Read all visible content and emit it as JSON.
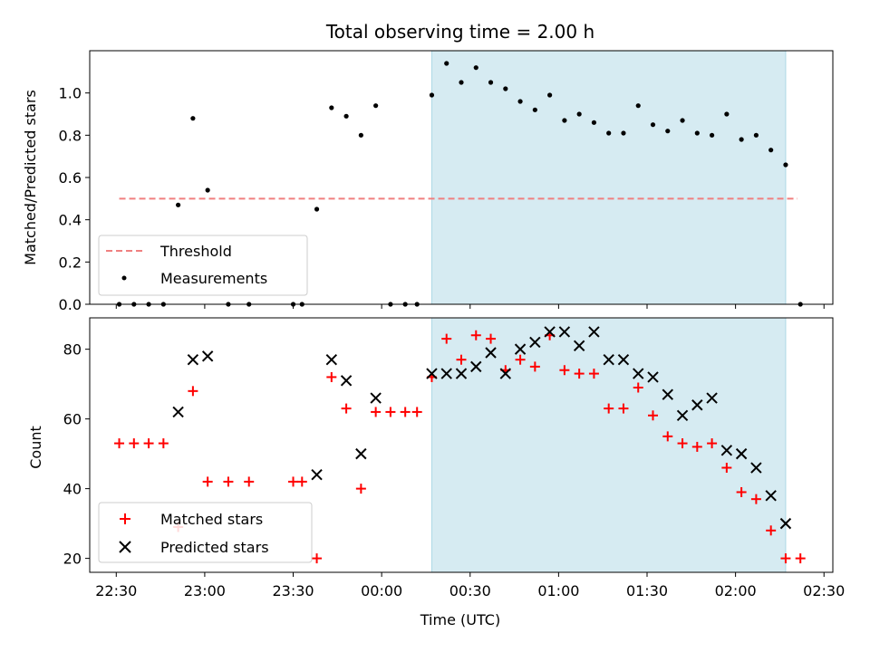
{
  "chart_data": [
    {
      "type": "scatter",
      "title": "Total observing time = 2.00 h",
      "xlabel": "",
      "ylabel": "Matched/Predicted stars",
      "ylim": [
        0,
        1.2
      ],
      "yticks": [
        "0.0",
        "0.2",
        "0.4",
        "0.6",
        "0.8",
        "1.0"
      ],
      "xlim": [
        "22:21",
        "02:33"
      ],
      "highlight_span": [
        "00:17",
        "02:17"
      ],
      "threshold": {
        "name": "Threshold",
        "y": 0.5,
        "x_start": "22:31",
        "x_end": "02:21",
        "color": "#f08080"
      },
      "series": [
        {
          "name": "Measurements",
          "color": "#000000",
          "x": [
            "22:31",
            "22:36",
            "22:41",
            "22:46",
            "22:51",
            "22:56",
            "23:01",
            "23:08",
            "23:15",
            "23:30",
            "23:33",
            "23:38",
            "23:43",
            "23:48",
            "23:53",
            "23:58",
            "00:03",
            "00:08",
            "00:12",
            "00:17",
            "00:22",
            "00:27",
            "00:32",
            "00:37",
            "00:42",
            "00:47",
            "00:52",
            "00:57",
            "01:02",
            "01:07",
            "01:12",
            "01:17",
            "01:22",
            "01:27",
            "01:32",
            "01:37",
            "01:42",
            "01:47",
            "01:52",
            "01:57",
            "02:02",
            "02:07",
            "02:12",
            "02:17",
            "02:22"
          ],
          "y": [
            0.0,
            0.0,
            0.0,
            0.0,
            0.47,
            0.88,
            0.54,
            0.0,
            0.0,
            0.0,
            0.0,
            0.45,
            0.93,
            0.89,
            0.8,
            0.94,
            0.0,
            0.0,
            0.0,
            0.99,
            1.14,
            1.05,
            1.12,
            1.05,
            1.02,
            0.96,
            0.92,
            0.99,
            0.87,
            0.9,
            0.86,
            0.81,
            0.81,
            0.94,
            0.85,
            0.82,
            0.87,
            0.81,
            0.8,
            0.9,
            0.78,
            0.8,
            0.73,
            0.66,
            0.0
          ]
        }
      ]
    },
    {
      "type": "scatter",
      "title": "",
      "xlabel": "Time (UTC)",
      "ylabel": "Count",
      "ylim": [
        16,
        89
      ],
      "yticks": [
        "20",
        "40",
        "60",
        "80"
      ],
      "xlim": [
        "22:21",
        "02:33"
      ],
      "xticks": [
        "22:30",
        "23:00",
        "23:30",
        "00:00",
        "00:30",
        "01:00",
        "01:30",
        "02:00",
        "02:30"
      ],
      "highlight_span": [
        "00:17",
        "02:17"
      ],
      "series": [
        {
          "name": "Matched stars",
          "color": "#ff0000",
          "x": [
            "22:31",
            "22:36",
            "22:41",
            "22:46",
            "22:51",
            "22:56",
            "23:01",
            "23:08",
            "23:15",
            "23:30",
            "23:33",
            "23:38",
            "23:43",
            "23:48",
            "23:53",
            "23:58",
            "00:03",
            "00:08",
            "00:12",
            "00:17",
            "00:22",
            "00:27",
            "00:32",
            "00:37",
            "00:42",
            "00:47",
            "00:52",
            "00:57",
            "01:02",
            "01:07",
            "01:12",
            "01:17",
            "01:22",
            "01:27",
            "01:32",
            "01:37",
            "01:42",
            "01:47",
            "01:52",
            "01:57",
            "02:02",
            "02:07",
            "02:12",
            "02:17",
            "02:22"
          ],
          "y": [
            53,
            53,
            53,
            53,
            29,
            68,
            42,
            42,
            42,
            42,
            42,
            20,
            72,
            63,
            40,
            62,
            62,
            62,
            62,
            72,
            83,
            77,
            84,
            83,
            74,
            77,
            75,
            84,
            74,
            73,
            73,
            63,
            63,
            69,
            61,
            55,
            53,
            52,
            53,
            46,
            39,
            37,
            28,
            20,
            20
          ]
        },
        {
          "name": "Predicted stars",
          "color": "#000000",
          "x": [
            "22:51",
            "22:56",
            "23:01",
            "23:38",
            "23:43",
            "23:48",
            "23:53",
            "23:58",
            "00:17",
            "00:22",
            "00:27",
            "00:32",
            "00:37",
            "00:42",
            "00:47",
            "00:52",
            "00:57",
            "01:02",
            "01:07",
            "01:12",
            "01:17",
            "01:22",
            "01:27",
            "01:32",
            "01:37",
            "01:42",
            "01:47",
            "01:52",
            "01:57",
            "02:02",
            "02:07",
            "02:12",
            "02:17"
          ],
          "y": [
            62,
            77,
            78,
            44,
            77,
            71,
            50,
            66,
            73,
            73,
            73,
            75,
            79,
            73,
            80,
            82,
            85,
            85,
            81,
            85,
            77,
            77,
            73,
            72,
            67,
            61,
            64,
            66,
            51,
            50,
            46,
            38,
            30
          ]
        }
      ]
    }
  ]
}
